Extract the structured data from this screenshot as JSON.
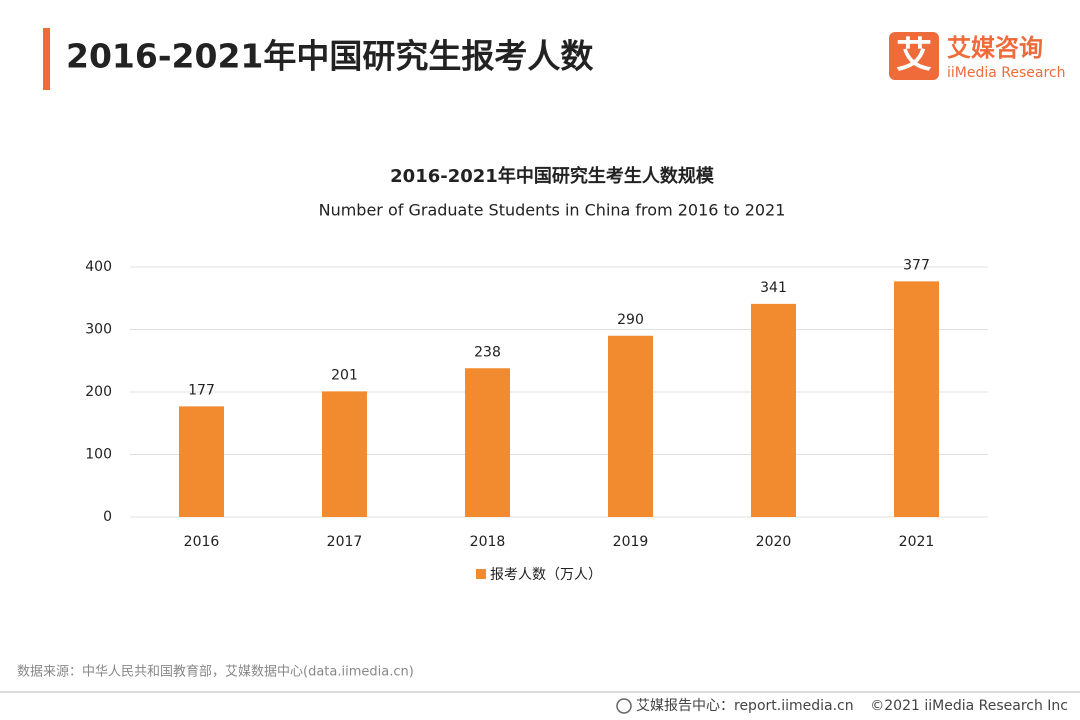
{
  "header": {
    "title": "2016-2021年中国研究生报考人数",
    "logo_mark": "艾",
    "logo_name": "艾媒咨询",
    "logo_en": "iiMedia Research"
  },
  "chart_data": {
    "type": "bar",
    "title": "2016-2021年中国研究生考生人数规模",
    "subtitle": "Number of Graduate Students in China from 2016 to 2021",
    "categories": [
      "2016",
      "2017",
      "2018",
      "2019",
      "2020",
      "2021"
    ],
    "series": [
      {
        "name": "报考人数（万人）",
        "color": "#f28a30",
        "values": [
          177,
          201,
          238,
          290,
          341,
          377
        ]
      }
    ],
    "ylim": [
      0,
      400
    ],
    "yticks": [
      0,
      100,
      200,
      300,
      400
    ],
    "grid": true,
    "legend": "bottom"
  },
  "source": "数据来源：中华人民共和国教育部，艾媒数据中心(data.iimedia.cn)",
  "footer": {
    "report": "艾媒报告中心：report.iimedia.cn",
    "copyright": "©2021  iiMedia Research  Inc"
  }
}
